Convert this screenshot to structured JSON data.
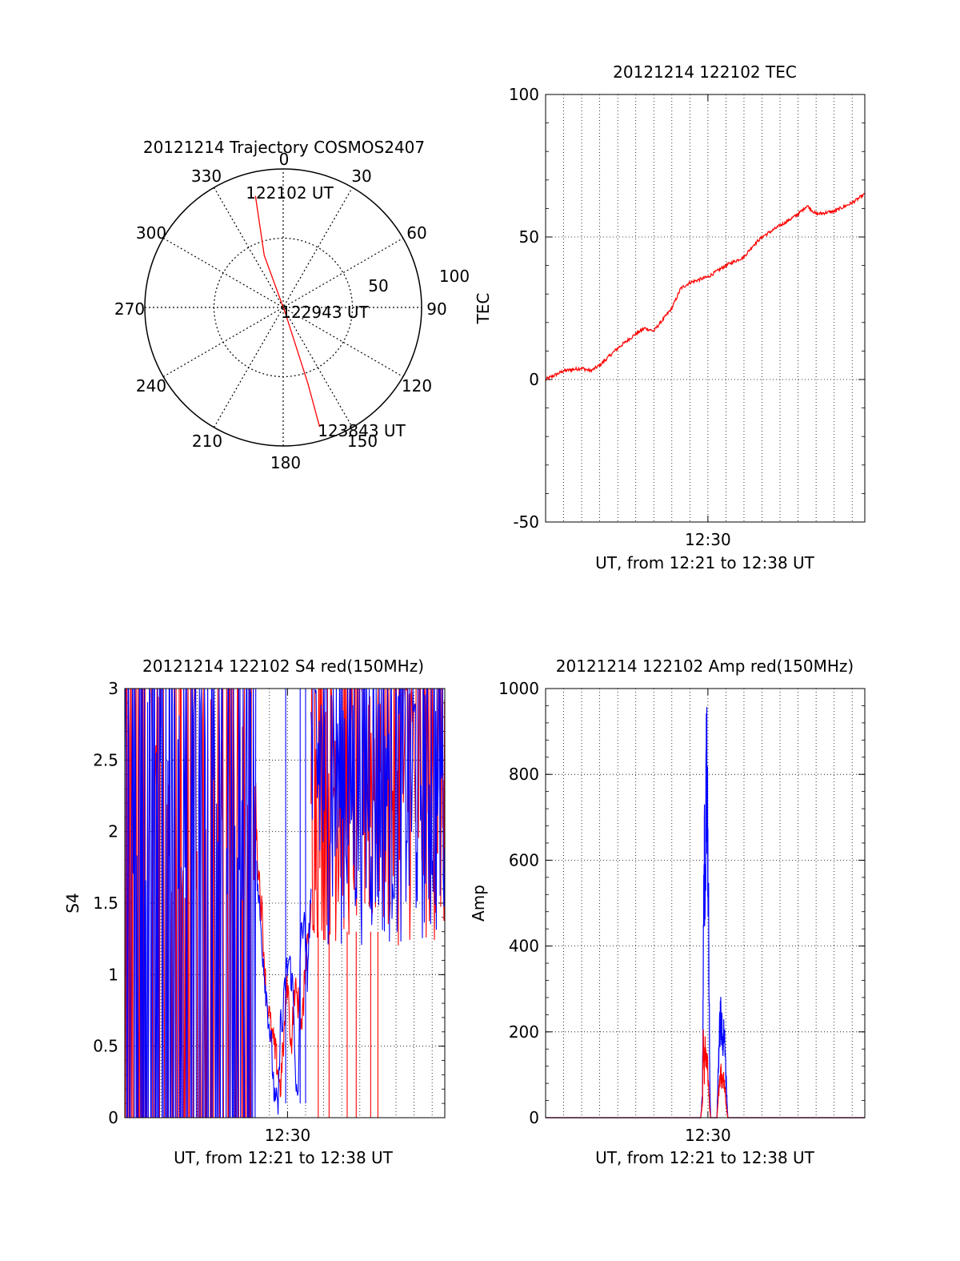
{
  "colors": {
    "red": "#ff0000",
    "blue": "#0000ff",
    "axis": "#000000"
  },
  "chart_data": [
    {
      "id": "trajectory",
      "type": "polar",
      "title": "20121214 Trajectory COSMOS2407",
      "angle_ticks": [
        "0",
        "30",
        "60",
        "90",
        "120",
        "150",
        "180",
        "210",
        "240",
        "270",
        "300",
        "330"
      ],
      "radial_ticks": [
        "50",
        "100"
      ],
      "rlim": [
        0,
        100
      ],
      "path": [
        {
          "azimuth": 346,
          "radius": 83
        },
        {
          "azimuth": 340,
          "radius": 40
        },
        {
          "azimuth": 160,
          "radius": 5
        },
        {
          "azimuth": 162,
          "radius": 58
        },
        {
          "azimuth": 163,
          "radius": 90
        }
      ],
      "annotations": [
        {
          "label": "122102 UT",
          "azimuth": 346,
          "radius": 83
        },
        {
          "label": "122943 UT",
          "azimuth": 90,
          "radius": 2
        },
        {
          "label": "123843 UT",
          "azimuth": 163,
          "radius": 90
        }
      ],
      "series": [
        {
          "color": "#ff0000"
        }
      ]
    },
    {
      "id": "tec",
      "type": "line",
      "title": "20121214 122102 TEC",
      "xlabel": "UT, from 12:21 to 12:38 UT",
      "ylabel": "TEC",
      "xlim": [
        0,
        17.7
      ],
      "ylim": [
        -50,
        100
      ],
      "y_ticks": [
        -50,
        0,
        50,
        100
      ],
      "x_ticks": [
        {
          "value": 9.0,
          "label": "12:30"
        }
      ],
      "grid": true,
      "series": [
        {
          "color": "#ff0000",
          "x": [
            0,
            1,
            2,
            2.5,
            3,
            4,
            5,
            5.5,
            6,
            7,
            7.5,
            8,
            9,
            10,
            11,
            11.5,
            12,
            13,
            14,
            14.5,
            15,
            16,
            17,
            17.7
          ],
          "values": [
            0,
            3,
            4,
            3,
            5,
            11,
            16,
            18,
            17,
            25,
            32,
            34,
            36,
            40,
            43,
            47,
            50,
            54,
            58,
            61,
            58,
            59,
            62,
            65
          ]
        }
      ]
    },
    {
      "id": "s4",
      "type": "line",
      "title": "20121214 122102 S4 red(150MHz)",
      "xlabel": "UT, from 12:21 to 12:38 UT",
      "ylabel": "S4",
      "xlim": [
        0,
        17.7
      ],
      "ylim": [
        0,
        3
      ],
      "y_ticks": [
        0,
        0.5,
        1,
        1.5,
        2,
        2.5,
        3
      ],
      "y_tick_labels": [
        "0",
        "0.5",
        "1",
        "1.5",
        "2",
        "2.5",
        "3"
      ],
      "x_ticks": [
        {
          "value": 9.0,
          "label": "12:30"
        }
      ],
      "grid": true,
      "noise_regions": [
        {
          "x_start": 0,
          "x_end": 7.3,
          "low": 0,
          "high": 3
        },
        {
          "x_start": 10.3,
          "x_end": 17.7,
          "low": 1.2,
          "high": 3
        }
      ],
      "red_spikes_x": [
        10.7,
        11.3,
        12.3,
        12.8,
        13.6,
        14.0
      ],
      "blue_spikes_x": [
        8.9,
        9.7,
        10.0
      ],
      "series": [
        {
          "color": "#ff0000",
          "x": [
            7.3,
            7.6,
            7.8,
            8.1,
            8.4,
            8.6,
            8.8,
            8.9,
            9.0,
            9.2,
            9.4,
            9.6,
            9.8,
            10.0,
            10.3
          ],
          "values": [
            1.9,
            1.4,
            0.9,
            0.6,
            0.4,
            0.2,
            0.55,
            0.8,
            0.95,
            0.5,
            0.9,
            0.8,
            0.6,
            1.1,
            1.5
          ]
        },
        {
          "color": "#0000ff",
          "x": [
            7.3,
            7.6,
            7.8,
            8.1,
            8.3,
            8.5,
            8.6,
            8.7,
            8.9,
            9.1,
            9.3,
            9.5,
            9.6,
            9.7,
            9.9,
            10.1,
            10.3
          ],
          "values": [
            1.7,
            1.2,
            0.9,
            0.5,
            0.1,
            0.08,
            0.7,
            0.6,
            1.0,
            1.1,
            0.9,
            0.15,
            0.1,
            1.2,
            1.4,
            1.0,
            1.6
          ]
        }
      ]
    },
    {
      "id": "amp",
      "type": "line",
      "title": "20121214 122102 Amp red(150MHz)",
      "xlabel": "UT, from 12:21 to 12:38 UT",
      "ylabel": "Amp",
      "xlim": [
        0,
        17.7
      ],
      "ylim": [
        0,
        1000
      ],
      "y_ticks": [
        0,
        200,
        400,
        600,
        800,
        1000
      ],
      "x_ticks": [
        {
          "value": 9.0,
          "label": "12:30"
        }
      ],
      "grid": true,
      "series": [
        {
          "color": "#0000ff",
          "x": [
            0,
            8.6,
            8.7,
            8.75,
            8.8,
            8.85,
            8.9,
            8.95,
            9.0,
            9.05,
            9.1,
            9.15,
            9.3,
            9.5,
            9.6,
            9.7,
            9.8,
            9.9,
            10.0,
            10.1,
            17.7
          ],
          "values": [
            0,
            0,
            50,
            400,
            620,
            500,
            760,
            800,
            650,
            400,
            100,
            0,
            0,
            0,
            150,
            240,
            180,
            200,
            100,
            0,
            0
          ]
        },
        {
          "color": "#ff0000",
          "x": [
            0,
            8.6,
            8.7,
            8.75,
            8.8,
            8.85,
            8.9,
            8.95,
            9.0,
            9.05,
            9.1,
            9.15,
            9.5,
            9.6,
            9.7,
            9.8,
            9.9,
            10.0,
            10.1,
            17.7
          ],
          "values": [
            0,
            0,
            40,
            200,
            100,
            170,
            120,
            150,
            90,
            60,
            20,
            0,
            0,
            60,
            110,
            80,
            90,
            40,
            0,
            0
          ]
        }
      ]
    }
  ]
}
